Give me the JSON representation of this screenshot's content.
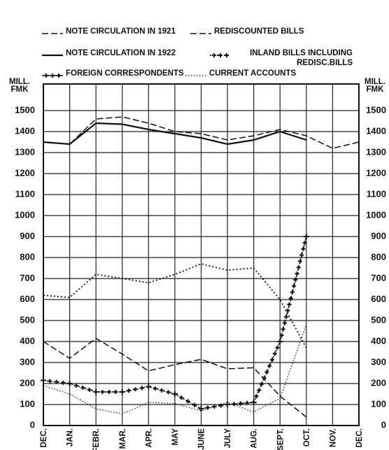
{
  "chart_data": {
    "type": "line",
    "ylabel": [
      "MILL.",
      "FMK"
    ],
    "categories": [
      "DEC.",
      "JAN.",
      "FEBR.",
      "MAR.",
      "APR.",
      "MAY",
      "JUNE",
      "JULY",
      "AUG.",
      "SEPT.",
      "OCT.",
      "NOV.",
      "DEC."
    ],
    "series": [
      {
        "name": "NOTE CIRCULATION IN 1921",
        "color": "#111111",
        "style": "dashed",
        "values": [
          1350,
          1340,
          1460,
          1470,
          1440,
          1400,
          1390,
          1360,
          1380,
          1410,
          1380,
          1320,
          1350
        ]
      },
      {
        "name": "REDISCOUNTED BILLS",
        "color": "#111111",
        "style": "dashed",
        "values": [
          400,
          320,
          415,
          340,
          260,
          290,
          315,
          270,
          275,
          140,
          40,
          null,
          null
        ]
      },
      {
        "name": "NOTE CIRCULATION IN 1922",
        "color": "#111111",
        "style": "solid",
        "values": [
          1350,
          1340,
          1440,
          1435,
          1410,
          1390,
          1370,
          1340,
          1360,
          1400,
          1360,
          null,
          null
        ]
      },
      {
        "name": "INLAND BILLS INCLUDING REDISC.BILLS",
        "color": "#111111",
        "style": "dotted",
        "values": [
          620,
          610,
          720,
          700,
          680,
          720,
          770,
          740,
          750,
          600,
          370,
          null,
          null
        ]
      },
      {
        "name": "FOREIGN CORRESPONDENTS",
        "color": "#111111",
        "style": "plus",
        "values": [
          215,
          200,
          160,
          160,
          185,
          150,
          80,
          100,
          110,
          400,
          900,
          null,
          null
        ]
      },
      {
        "name": "CURRENT ACCOUNTS",
        "color": "#111111",
        "style": "fine",
        "values": [
          190,
          150,
          80,
          55,
          110,
          105,
          70,
          110,
          65,
          130,
          480,
          null,
          null
        ]
      }
    ],
    "ylim": [
      0,
      1600
    ],
    "yticks": [
      0,
      100,
      200,
      300,
      400,
      500,
      600,
      700,
      800,
      900,
      1000,
      1100,
      1200,
      1300,
      1400,
      1500
    ],
    "grid": true
  }
}
